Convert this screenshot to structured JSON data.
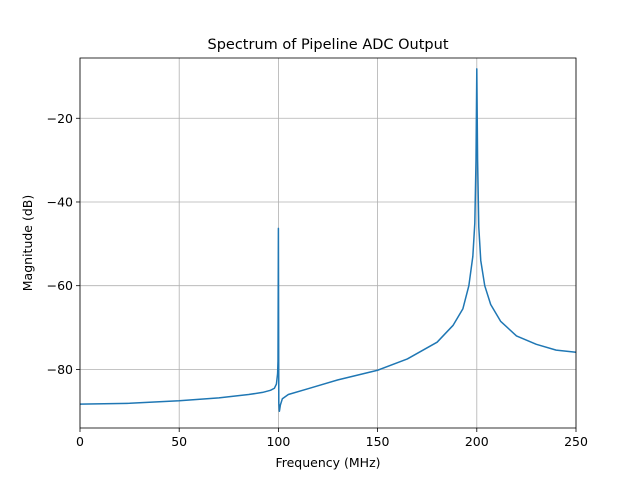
{
  "chart_data": {
    "type": "line",
    "title": "Spectrum of Pipeline ADC Output",
    "xlabel": "Frequency (MHz)",
    "ylabel": "Magnitude (dB)",
    "xlim": [
      0,
      250
    ],
    "ylim": [
      -94,
      -5.6
    ],
    "xticks": [
      0,
      50,
      100,
      150,
      200,
      250
    ],
    "yticks": [
      -80,
      -60,
      -40,
      -20
    ],
    "xtick_labels": [
      "0",
      "50",
      "100",
      "150",
      "200",
      "250"
    ],
    "ytick_labels": [
      "−80",
      "−60",
      "−40",
      "−20"
    ],
    "grid": true,
    "series": [
      {
        "color": "#1f77b4",
        "x": [
          0,
          25,
          50,
          70,
          85,
          92,
          96,
          98,
          99,
          99.6,
          99.8,
          100,
          100.2,
          100.5,
          101,
          102,
          105,
          115,
          130,
          150,
          165,
          180,
          188,
          193,
          196,
          198,
          199,
          199.6,
          200,
          200.4,
          201,
          202,
          204,
          207,
          212,
          220,
          230,
          240,
          250
        ],
        "y": [
          -88.3,
          -88.1,
          -87.5,
          -86.8,
          -86,
          -85.5,
          -85,
          -84.5,
          -83.5,
          -81,
          -78,
          -46.3,
          -88,
          -90,
          -88.5,
          -87,
          -86,
          -84.6,
          -82.5,
          -80.2,
          -77.5,
          -73.5,
          -69.5,
          -65.5,
          -60,
          -53,
          -45,
          -30,
          -8.2,
          -30,
          -46,
          -54,
          -60,
          -64.5,
          -68.5,
          -72,
          -74,
          -75.4,
          -75.9
        ]
      }
    ]
  }
}
